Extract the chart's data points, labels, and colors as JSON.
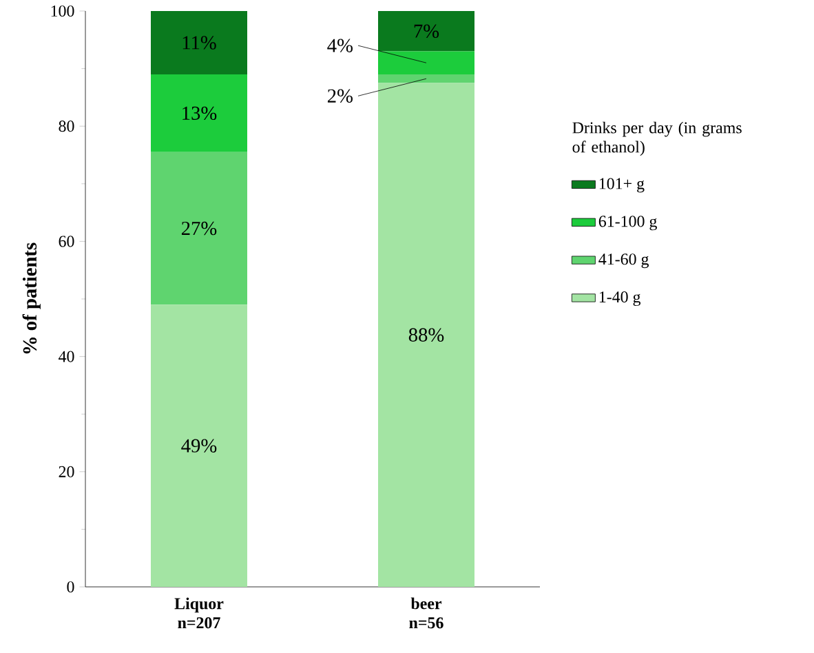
{
  "chart_data": {
    "type": "bar",
    "stacked": true,
    "ylabel": "% of patients",
    "legend_title": "Drinks per day (in grams of ethanol)",
    "legend": "right",
    "categories": [
      "Liquor n=207",
      "beer n=56"
    ],
    "series": [
      {
        "name": "1-40 g",
        "color": "#a3e4a3",
        "values": [
          49,
          87.5
        ],
        "value_labels": [
          "49%",
          "88%"
        ]
      },
      {
        "name": "41-60 g",
        "color": "#5fd46f",
        "values": [
          26.5,
          1.5
        ],
        "value_labels": [
          "27%",
          "2%"
        ]
      },
      {
        "name": "61-100 g",
        "color": "#1ccc3c",
        "values": [
          13.5,
          4
        ],
        "value_labels": [
          "13%",
          "4%"
        ]
      },
      {
        "name": "101+ g",
        "color": "#0a7a1e",
        "values": [
          11,
          7
        ],
        "value_labels": [
          "11%",
          "7%"
        ]
      }
    ],
    "ylim": [
      0,
      100
    ],
    "yticks": [
      0,
      20,
      40,
      60,
      80,
      100
    ]
  }
}
